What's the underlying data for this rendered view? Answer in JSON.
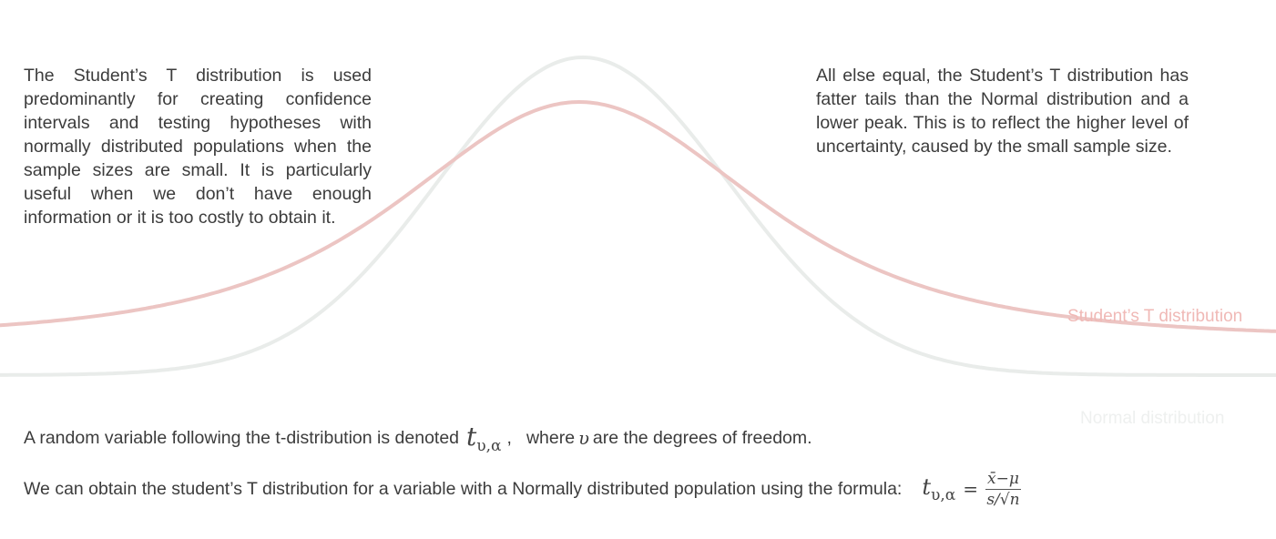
{
  "left_paragraph": "The Student’s T distribution is used predominantly for creating confidence intervals and testing hypotheses with normally distributed populations when the sample sizes are small. It is particularly useful when we don’t have enough information or it is too costly to obtain it.",
  "right_paragraph": "All else equal, the Student’s T distribution has fatter tails than the Normal distribution and a lower peak. This is to reflect the higher level of uncertainty, caused by the small sample size.",
  "curve_labels": {
    "t": "Student’s T distribution",
    "normal": "Normal distribution"
  },
  "colors": {
    "t_curve": "#ecc5c3",
    "normal_curve": "#e9ecea"
  },
  "notation_line": {
    "before": "A random variable following the t-distribution is denoted",
    "symbol": "t",
    "subscript": "υ,α",
    "comma": ",",
    "middle": "where",
    "variable": "υ",
    "after": "are the degrees of freedom."
  },
  "formula_line": {
    "text": "We can obtain the student’s T distribution for a variable with a Normally distributed population using the formula:",
    "lhs_symbol": "t",
    "lhs_subscript": "υ,α",
    "equals": "=",
    "numerator": "x̄−μ",
    "denominator": "s/√n"
  }
}
